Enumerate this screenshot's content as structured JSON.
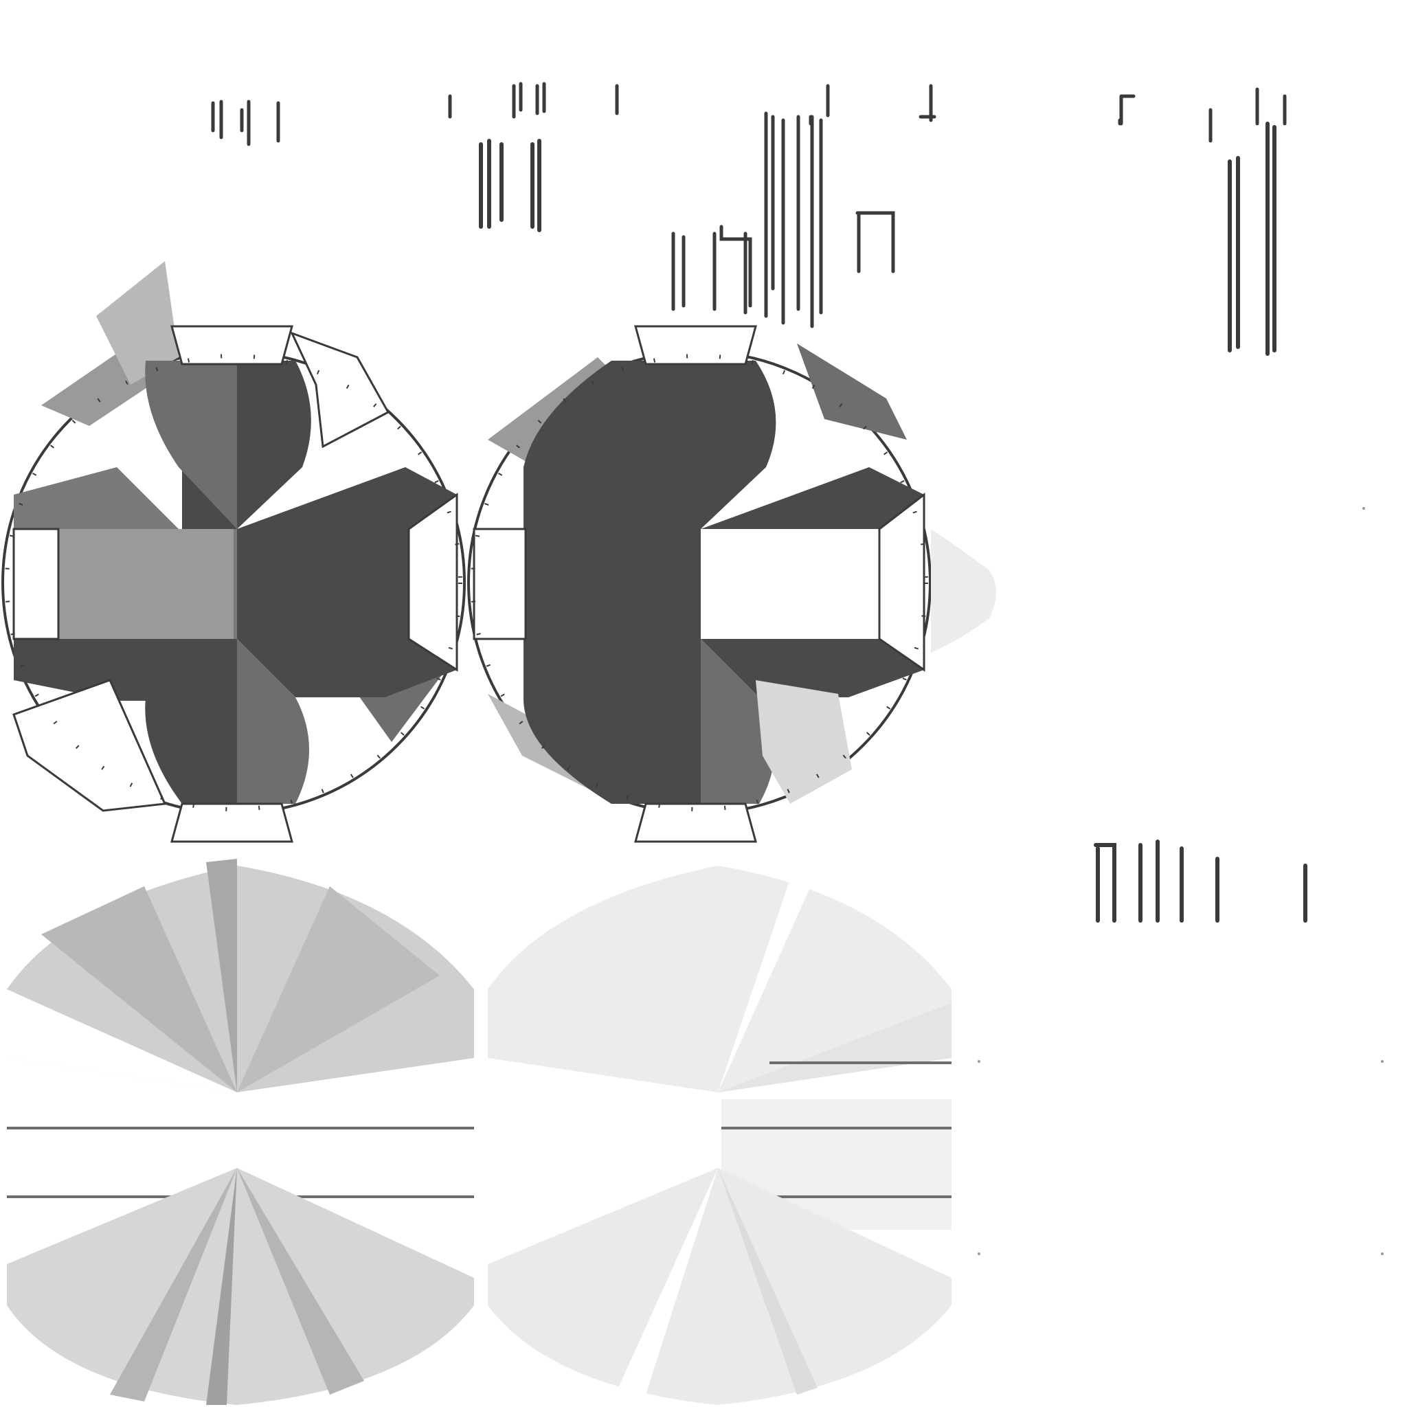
{
  "canvas": {
    "background": "#ffffff"
  },
  "palette": {
    "dark": "#4a4a4a",
    "mid": "#6e6e6e",
    "light": "#9a9a9a",
    "pale": "#d4d4d4",
    "faint": "#ececec",
    "white": "#ffffff",
    "stroke": "#3a3a3a"
  },
  "texture_atlas": {
    "description_visible": false,
    "rows": [
      {
        "kind": "vertical-stroke-fragments"
      },
      {
        "kind": "octagon-wheel",
        "count": 2
      },
      {
        "kind": "radial-fan-discs",
        "count": 2
      }
    ]
  }
}
